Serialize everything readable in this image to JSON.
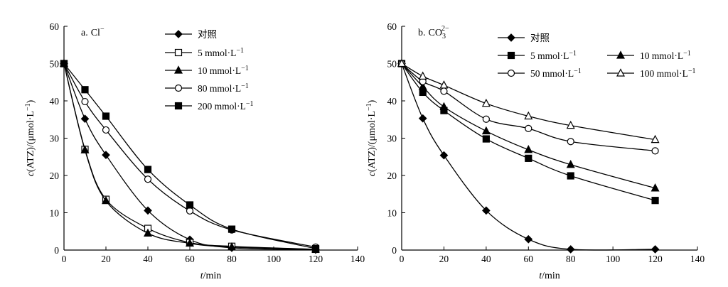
{
  "chart_data": [
    {
      "type": "line",
      "panel_label": "a.",
      "panel_ion": "Cl",
      "panel_ion_sup": "−",
      "xlabel_var": "t",
      "xlabel_unit": "/min",
      "ylabel_var": "c",
      "ylabel_rest": "(ATZ)/(μmol·L",
      "ylabel_sup": "−1",
      "ylabel_close": ")",
      "xlim": [
        0,
        140
      ],
      "ylim": [
        0,
        60
      ],
      "xticks": [
        0,
        20,
        40,
        60,
        80,
        100,
        120,
        140
      ],
      "yticks": [
        0,
        10,
        20,
        30,
        40,
        50,
        60
      ],
      "x": [
        0,
        10,
        20,
        40,
        60,
        80,
        120
      ],
      "series": [
        {
          "name": "对照",
          "unit": "",
          "sup": "",
          "marker": "diamond",
          "values": [
            50,
            35.2,
            25.5,
            10.6,
            2.8,
            0.6,
            0.1
          ]
        },
        {
          "name": "5",
          "unit": " mmol·L",
          "sup": "−1",
          "marker": "square-open",
          "values": [
            50,
            27.0,
            13.6,
            5.8,
            2.0,
            1.0,
            0.2
          ]
        },
        {
          "name": "10",
          "unit": " mmol·L",
          "sup": "−1",
          "marker": "triangle-filled",
          "values": [
            50,
            26.8,
            13.2,
            4.5,
            1.8,
            0.8,
            0.2
          ]
        },
        {
          "name": "80",
          "unit": " mmol·L",
          "sup": "−1",
          "marker": "circle-open",
          "values": [
            50,
            39.8,
            32.2,
            19.0,
            10.5,
            5.4,
            0.8
          ]
        },
        {
          "name": "200",
          "unit": " mmol·L",
          "sup": "−1",
          "marker": "square-filled",
          "values": [
            50,
            43.0,
            35.9,
            21.6,
            12.1,
            5.6,
            0.4
          ]
        }
      ]
    },
    {
      "type": "line",
      "panel_label": "b.",
      "panel_ion": "CO",
      "panel_ion_sub": "3",
      "panel_ion_sup": "2−",
      "xlabel_var": "t",
      "xlabel_unit": "/min",
      "ylabel_var": "c",
      "ylabel_rest": "(ATZ)/(μmol·L",
      "ylabel_sup": "−1",
      "ylabel_close": ")",
      "xlim": [
        0,
        140
      ],
      "ylim": [
        0,
        60
      ],
      "xticks": [
        0,
        20,
        40,
        60,
        80,
        100,
        120,
        140
      ],
      "yticks": [
        0,
        10,
        20,
        30,
        40,
        50,
        60
      ],
      "x": [
        0,
        10,
        20,
        40,
        60,
        80,
        120
      ],
      "series": [
        {
          "name": "对照",
          "unit": "",
          "sup": "",
          "marker": "diamond",
          "values": [
            50,
            35.3,
            25.4,
            10.6,
            2.9,
            0.2,
            0.2
          ]
        },
        {
          "name": "5",
          "unit": " mmol·L",
          "sup": "−1",
          "marker": "square-filled",
          "values": [
            50,
            42.3,
            37.4,
            29.8,
            24.6,
            19.9,
            13.3
          ]
        },
        {
          "name": "10",
          "unit": " mmol·L",
          "sup": "−1",
          "marker": "triangle-filled",
          "values": [
            50,
            43.8,
            38.4,
            31.9,
            26.9,
            22.9,
            16.6
          ]
        },
        {
          "name": "50",
          "unit": " mmol·L",
          "sup": "−1",
          "marker": "circle-open",
          "values": [
            50,
            45.2,
            42.6,
            35.1,
            32.6,
            29.1,
            26.6
          ]
        },
        {
          "name": "100",
          "unit": " mmol·L",
          "sup": "−1",
          "marker": "triangle-open",
          "values": [
            50,
            46.6,
            44.2,
            39.3,
            35.9,
            33.4,
            29.6
          ]
        }
      ]
    }
  ]
}
